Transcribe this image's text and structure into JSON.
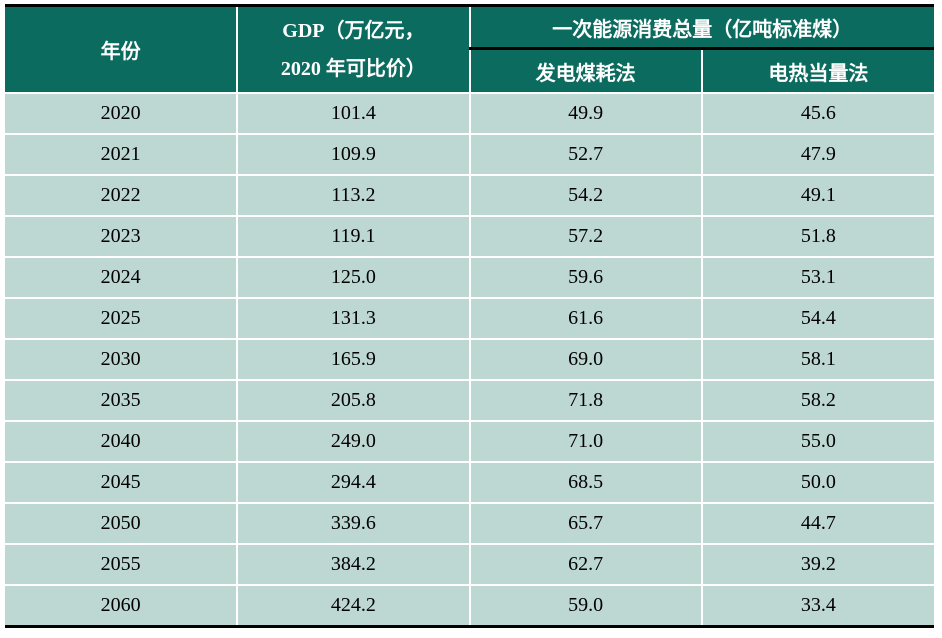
{
  "header": {
    "year": "年份",
    "gdp_line1": "GDP（万亿元，",
    "gdp_line2": "2020 年可比价）",
    "energy": "一次能源消费总量（亿吨标准煤）",
    "energy_sub1": "发电煤耗法",
    "energy_sub2": "电热当量法"
  },
  "rows": [
    {
      "year": "2020",
      "gdp": "101.4",
      "coal_method": "49.9",
      "heat_method": "45.6"
    },
    {
      "year": "2021",
      "gdp": "109.9",
      "coal_method": "52.7",
      "heat_method": "47.9"
    },
    {
      "year": "2022",
      "gdp": "113.2",
      "coal_method": "54.2",
      "heat_method": "49.1"
    },
    {
      "year": "2023",
      "gdp": "119.1",
      "coal_method": "57.2",
      "heat_method": "51.8"
    },
    {
      "year": "2024",
      "gdp": "125.0",
      "coal_method": "59.6",
      "heat_method": "53.1"
    },
    {
      "year": "2025",
      "gdp": "131.3",
      "coal_method": "61.6",
      "heat_method": "54.4"
    },
    {
      "year": "2030",
      "gdp": "165.9",
      "coal_method": "69.0",
      "heat_method": "58.1"
    },
    {
      "year": "2035",
      "gdp": "205.8",
      "coal_method": "71.8",
      "heat_method": "58.2"
    },
    {
      "year": "2040",
      "gdp": "249.0",
      "coal_method": "71.0",
      "heat_method": "55.0"
    },
    {
      "year": "2045",
      "gdp": "294.4",
      "coal_method": "68.5",
      "heat_method": "50.0"
    },
    {
      "year": "2050",
      "gdp": "339.6",
      "coal_method": "65.7",
      "heat_method": "44.7"
    },
    {
      "year": "2055",
      "gdp": "384.2",
      "coal_method": "62.7",
      "heat_method": "39.2"
    },
    {
      "year": "2060",
      "gdp": "424.2",
      "coal_method": "59.0",
      "heat_method": "33.4"
    }
  ],
  "colors": {
    "header_bg": "#0c6b5f",
    "header_text": "#ffffff",
    "row_bg": "#bdd7d2",
    "body_text": "#000000",
    "outer_border": "#000000",
    "cell_separator": "#ffffff"
  }
}
